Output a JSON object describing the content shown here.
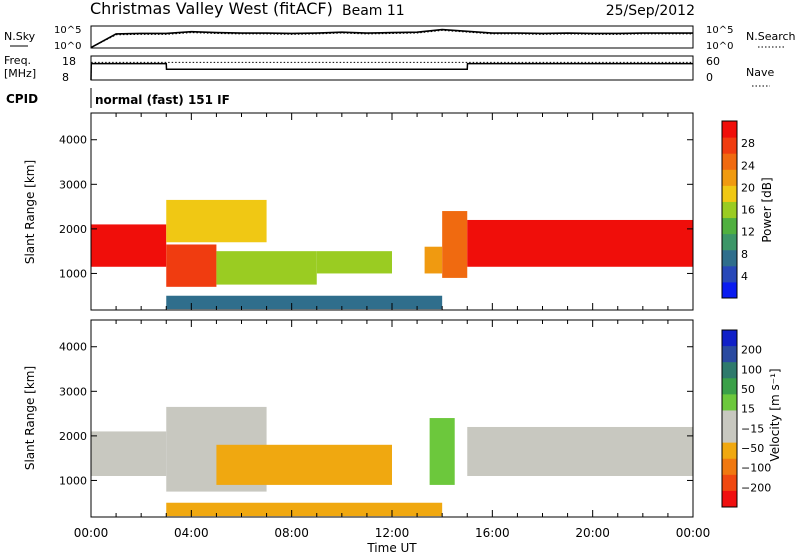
{
  "header": {
    "station": "Christmas Valley West (fitACF)",
    "beam": "Beam 11",
    "date": "25/Sep/2012"
  },
  "status_panels": {
    "nsky_label": "N.Sky",
    "nsearch_label": "N.Search",
    "noise_ticks": [
      "10^5",
      "10^0"
    ],
    "freq_label_1": "Freq.",
    "freq_label_2": "[MHz]",
    "freq_ticks": [
      "18",
      "8"
    ],
    "nave_label": "Nave",
    "nave_ticks": [
      "60",
      "0"
    ],
    "cpid_label": "CPID",
    "cpid_value": "normal (fast) 151 IF"
  },
  "colors": {
    "power_scale": [
      "#0a1cf0",
      "#2848b8",
      "#2f6e8c",
      "#3c9668",
      "#50b040",
      "#9acc22",
      "#f0c814",
      "#f09a10",
      "#f06a10",
      "#f03c10",
      "#f00e0a"
    ],
    "velocity_scale": [
      "#1020c8",
      "#2a4aa0",
      "#2e7a6c",
      "#3aa048",
      "#6cc83c",
      "#c8c8c0",
      "#c8c8c0",
      "#f0a810",
      "#f07810",
      "#f04810",
      "#f01010"
    ]
  },
  "chart_data": [
    {
      "type": "line",
      "name_hint": "noise",
      "x": [
        0,
        1,
        2,
        3,
        4,
        5,
        6,
        7,
        8,
        9,
        10,
        11,
        12,
        13,
        14,
        15,
        16,
        17,
        18,
        19,
        20,
        21,
        22,
        23,
        24
      ],
      "ylim": [
        0,
        5
      ],
      "series": [
        {
          "name": "N.Sky",
          "values": [
            0.1,
            3.2,
            3.3,
            3.3,
            3.7,
            3.5,
            3.4,
            3.4,
            3.3,
            3.4,
            3.6,
            3.4,
            3.5,
            3.6,
            4.2,
            3.8,
            3.4,
            3.4,
            3.3,
            3.4,
            3.3,
            3.3,
            3.4,
            3.4,
            3.4
          ]
        },
        {
          "name": "N.Search",
          "values": [
            0.1,
            3.0,
            3.1,
            3.1,
            3.5,
            3.3,
            3.2,
            3.2,
            3.1,
            3.2,
            3.4,
            3.2,
            3.3,
            3.4,
            4.0,
            3.6,
            3.2,
            3.2,
            3.1,
            3.2,
            3.1,
            3.1,
            3.2,
            3.2,
            3.2
          ]
        }
      ],
      "ytick_labels": [
        "10^5",
        "10^0"
      ]
    },
    {
      "type": "line",
      "name_hint": "frequency",
      "x": [
        0,
        0.01,
        3,
        3.01,
        15,
        15.01,
        24
      ],
      "ylim": [
        8,
        18
      ],
      "series": [
        {
          "name": "Freq.",
          "values": [
            8,
            14.8,
            14.8,
            12.5,
            12.5,
            14.8,
            14.8
          ]
        },
        {
          "name": "Nave",
          "values": [
            0,
            44,
            44,
            44,
            44,
            44,
            44
          ]
        }
      ],
      "ytick_labels": [
        "18",
        "8"
      ]
    },
    {
      "type": "heatmap",
      "title": "",
      "xlabel": "",
      "ylabel": "Slant Range [km]",
      "xlim": [
        0,
        24
      ],
      "ylim": [
        180,
        4600
      ],
      "yticks": [
        1000,
        2000,
        3000,
        4000
      ],
      "colorbar": {
        "label": "Power [dB]",
        "ticks": [
          4,
          8,
          12,
          16,
          20,
          24,
          28
        ],
        "range": [
          0,
          30
        ]
      },
      "regions": [
        {
          "x": [
            0.0,
            3.0
          ],
          "range": [
            1150,
            2100
          ],
          "value": 28
        },
        {
          "x": [
            3.0,
            5.0
          ],
          "range": [
            700,
            1650
          ],
          "value": 26
        },
        {
          "x": [
            3.0,
            7.0
          ],
          "range": [
            1700,
            2650
          ],
          "value": 18
        },
        {
          "x": [
            5.0,
            9.0
          ],
          "range": [
            750,
            1500
          ],
          "value": 16
        },
        {
          "x": [
            9.0,
            12.0
          ],
          "range": [
            1000,
            1500
          ],
          "value": 14
        },
        {
          "x": [
            13.3,
            14.0
          ],
          "range": [
            1000,
            1600
          ],
          "value": 20
        },
        {
          "x": [
            14.0,
            15.0
          ],
          "range": [
            900,
            2400
          ],
          "value": 24
        },
        {
          "x": [
            15.0,
            24.0
          ],
          "range": [
            1150,
            2200
          ],
          "value": 28
        },
        {
          "x": [
            3.0,
            14.0
          ],
          "range": [
            200,
            500
          ],
          "value": 8
        }
      ]
    },
    {
      "type": "heatmap",
      "title": "",
      "xlabel": "Time UT",
      "ylabel": "Slant Range [km]",
      "xlim": [
        0,
        24
      ],
      "ylim": [
        180,
        4600
      ],
      "yticks": [
        1000,
        2000,
        3000,
        4000
      ],
      "xtick_labels": [
        "00:00",
        "04:00",
        "08:00",
        "12:00",
        "16:00",
        "20:00",
        "00:00"
      ],
      "colorbar": {
        "label": "Velocity [m s⁻¹]",
        "ticks": [
          200,
          100,
          50,
          15,
          -15,
          -50,
          -100,
          -200
        ]
      },
      "regions": [
        {
          "x": [
            0.0,
            3.0
          ],
          "range": [
            1100,
            2100
          ],
          "value": 0
        },
        {
          "x": [
            3.0,
            7.0
          ],
          "range": [
            750,
            2650
          ],
          "value": 0
        },
        {
          "x": [
            5.0,
            12.0
          ],
          "range": [
            900,
            1800
          ],
          "value": -60
        },
        {
          "x": [
            13.5,
            14.5
          ],
          "range": [
            900,
            2400
          ],
          "value": 40
        },
        {
          "x": [
            15.0,
            24.0
          ],
          "range": [
            1100,
            2200
          ],
          "value": 0
        },
        {
          "x": [
            3.0,
            14.0
          ],
          "range": [
            200,
            500
          ],
          "value": -60
        }
      ]
    }
  ]
}
